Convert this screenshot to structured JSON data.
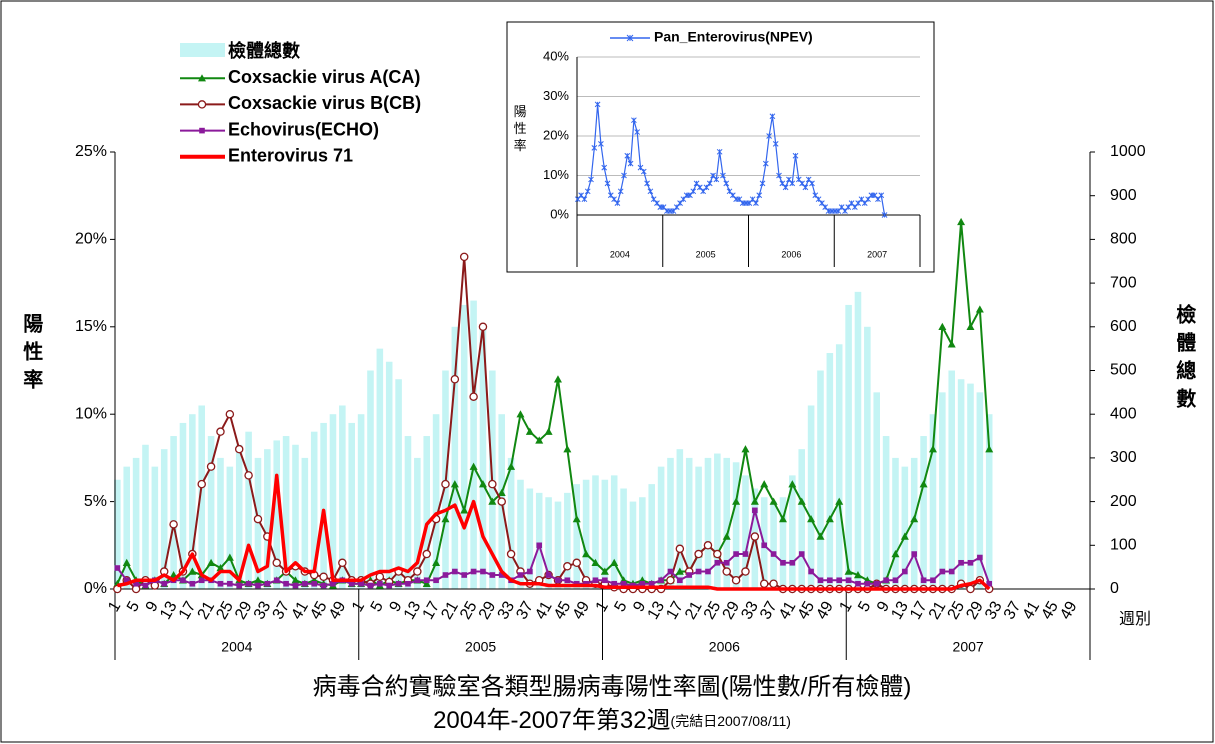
{
  "chart_data": [
    {
      "type": "line",
      "title": "病毒合約實驗室各類型腸病毒陽性率圖(陽性數/所有檢體)",
      "subtitle": "2004年-2007年第32週",
      "note": "(完結日2007/08/11)",
      "y_label": "陽性率",
      "y2_label": "檢體總數",
      "x_label": "週別",
      "years": [
        "2004",
        "2005",
        "2006",
        "2007"
      ],
      "xlim": [
        0.5,
        208.5
      ],
      "xticks": [
        1,
        5,
        9,
        13,
        17,
        21,
        25,
        29,
        33,
        37,
        41,
        45,
        49,
        {
          "value": 53,
          "label": "1"
        },
        {
          "value": 57,
          "label": "5"
        },
        {
          "value": 61,
          "label": "9"
        },
        {
          "value": 65,
          "label": "13"
        },
        {
          "value": 69,
          "label": "17"
        },
        {
          "value": 73,
          "label": "21"
        },
        {
          "value": 77,
          "label": "25"
        },
        {
          "value": 81,
          "label": "29"
        },
        {
          "value": 85,
          "label": "33"
        },
        {
          "value": 89,
          "label": "37"
        },
        {
          "value": 93,
          "label": "41"
        },
        {
          "value": 97,
          "label": "45"
        },
        {
          "value": 101,
          "label": "49"
        },
        {
          "value": 105,
          "label": "1"
        },
        {
          "value": 109,
          "label": "5"
        },
        {
          "value": 113,
          "label": "9"
        },
        {
          "value": 117,
          "label": "13"
        },
        {
          "value": 121,
          "label": "17"
        },
        {
          "value": 125,
          "label": "21"
        },
        {
          "value": 129,
          "label": "25"
        },
        {
          "value": 133,
          "label": "29"
        },
        {
          "value": 137,
          "label": "33"
        },
        {
          "value": 141,
          "label": "37"
        },
        {
          "value": 145,
          "label": "41"
        },
        {
          "value": 149,
          "label": "45"
        },
        {
          "value": 153,
          "label": "49"
        },
        {
          "value": 157,
          "label": "1"
        },
        {
          "value": 161,
          "label": "5"
        },
        {
          "value": 165,
          "label": "9"
        },
        {
          "value": 169,
          "label": "13"
        },
        {
          "value": 173,
          "label": "17"
        },
        {
          "value": 177,
          "label": "21"
        },
        {
          "value": 181,
          "label": "25"
        },
        {
          "value": 185,
          "label": "29"
        },
        {
          "value": 189,
          "label": "33"
        },
        {
          "value": 193,
          "label": "37"
        },
        {
          "value": 197,
          "label": "41"
        },
        {
          "value": 201,
          "label": "45"
        },
        {
          "value": 205,
          "label": "49"
        }
      ],
      "ylim": [
        0,
        25
      ],
      "yticks": [
        {
          "value": 0,
          "label": "0%"
        },
        {
          "value": 5,
          "label": "5%"
        },
        {
          "value": 10,
          "label": "10%"
        },
        {
          "value": 15,
          "label": "15%"
        },
        {
          "value": 20,
          "label": "20%"
        },
        {
          "value": 25,
          "label": "25%"
        }
      ],
      "y2lim": [
        0,
        1000
      ],
      "y2ticks": [
        0,
        100,
        200,
        300,
        400,
        500,
        600,
        700,
        800,
        900,
        1000
      ],
      "grid": false,
      "x": [
        1,
        3,
        5,
        7,
        9,
        11,
        13,
        15,
        17,
        19,
        21,
        23,
        25,
        27,
        29,
        31,
        33,
        35,
        37,
        39,
        41,
        43,
        45,
        47,
        49,
        51,
        53,
        55,
        57,
        59,
        61,
        63,
        65,
        67,
        69,
        71,
        73,
        75,
        77,
        79,
        81,
        83,
        85,
        87,
        89,
        91,
        93,
        95,
        97,
        99,
        101,
        103,
        105,
        107,
        109,
        111,
        113,
        115,
        117,
        119,
        121,
        123,
        125,
        127,
        129,
        131,
        133,
        135,
        137,
        139,
        141,
        143,
        145,
        147,
        149,
        151,
        153,
        155,
        157,
        159,
        161,
        163,
        165,
        167,
        169,
        171,
        173,
        175,
        177,
        179,
        181,
        183,
        185,
        187
      ],
      "series": [
        {
          "name": "檢體總數",
          "type": "bar",
          "axis": "y2",
          "color": "#c4f4f4",
          "values": [
            250,
            280,
            300,
            330,
            280,
            320,
            350,
            380,
            400,
            420,
            350,
            300,
            280,
            330,
            360,
            300,
            320,
            340,
            350,
            330,
            300,
            360,
            380,
            400,
            420,
            380,
            400,
            500,
            550,
            520,
            480,
            350,
            300,
            350,
            400,
            500,
            600,
            650,
            660,
            600,
            500,
            400,
            300,
            250,
            230,
            220,
            210,
            200,
            220,
            240,
            250,
            260,
            250,
            260,
            230,
            200,
            210,
            240,
            280,
            300,
            320,
            300,
            280,
            300,
            310,
            300,
            290,
            260,
            230,
            210,
            200,
            210,
            260,
            320,
            420,
            500,
            540,
            560,
            650,
            680,
            600,
            450,
            350,
            300,
            280,
            300,
            350,
            400,
            450,
            500,
            480,
            470,
            450,
            400
          ]
        },
        {
          "name": "Coxsackie virus A(CA)",
          "marker": "triangle",
          "color": "#118811",
          "values": [
            0.3,
            1.5,
            0.5,
            0.2,
            0.5,
            0.3,
            0.8,
            0.5,
            1,
            0.8,
            1.5,
            1.2,
            1.8,
            0.5,
            0.3,
            0.5,
            0.3,
            0.5,
            1,
            0.5,
            0.3,
            0.5,
            0.3,
            0.2,
            0.5,
            0.3,
            0.3,
            0.5,
            0.2,
            0.5,
            0.3,
            0.5,
            0.5,
            0.3,
            1.5,
            4,
            6,
            4.5,
            7,
            6,
            5,
            5.5,
            7,
            10,
            9,
            8.5,
            9,
            12,
            8,
            4,
            2,
            1.5,
            1,
            1.5,
            0.5,
            0.3,
            0.5,
            0.3,
            0.5,
            0.5,
            1,
            1,
            2,
            2.5,
            2,
            3,
            5,
            8,
            5,
            6,
            5,
            4,
            6,
            5,
            4,
            3,
            4,
            5,
            1,
            0.8,
            0.5,
            0.3,
            0.5,
            2,
            3,
            4,
            6,
            8,
            15,
            14,
            21,
            15,
            16,
            8
          ]
        },
        {
          "name": "Coxsackie virus B(CB)",
          "marker": "circle",
          "color": "#8b1a1a",
          "values": [
            0,
            0.5,
            0,
            0.5,
            0.2,
            1,
            3.7,
            1,
            2,
            6,
            7,
            9,
            10,
            8,
            6.5,
            4,
            3,
            1.5,
            1,
            1.3,
            1,
            0.8,
            0.7,
            0.5,
            1.5,
            0.5,
            0.5,
            0.3,
            0.7,
            0.4,
            1,
            0.5,
            1,
            2,
            4,
            6,
            12,
            19,
            11,
            15,
            6,
            5,
            2,
            1,
            0.3,
            0.5,
            0.8,
            0.5,
            1.3,
            1.5,
            0.5,
            0.3,
            0.3,
            0.1,
            0,
            0,
            0,
            0,
            0,
            0.5,
            2.3,
            1,
            2,
            2.5,
            2,
            1,
            0.5,
            1,
            3,
            0.3,
            0.3,
            0,
            0,
            0,
            0,
            0,
            0,
            0,
            0,
            0,
            0,
            0.3,
            0,
            0,
            0,
            0,
            0,
            0,
            0,
            0,
            0.3,
            0,
            0.5,
            0
          ]
        },
        {
          "name": "Echovirus(ECHO)",
          "marker": "square",
          "color": "#8b1a9b",
          "values": [
            1.2,
            0.5,
            0.3,
            0.2,
            0.5,
            0.3,
            0.5,
            0.5,
            0.3,
            0.5,
            0.5,
            0.3,
            0.3,
            0.2,
            0.3,
            0.2,
            0.3,
            0.5,
            0.3,
            0.2,
            0.3,
            0.3,
            0.2,
            0.3,
            0.5,
            0.3,
            0.3,
            0.2,
            0.3,
            0.2,
            0.3,
            0.3,
            0.5,
            0.5,
            0.5,
            0.8,
            1,
            0.8,
            1,
            1,
            0.8,
            0.8,
            0.5,
            0.8,
            1,
            2.5,
            0.8,
            0.5,
            0.5,
            0.3,
            0.3,
            0.5,
            0.5,
            0.3,
            0.3,
            0.2,
            0.3,
            0.3,
            0.5,
            1,
            0.5,
            0.8,
            1,
            1,
            1.5,
            1.5,
            2,
            2,
            4.5,
            2.5,
            2,
            1.5,
            1.5,
            2,
            1,
            0.5,
            0.5,
            0.5,
            0.5,
            0.3,
            0.3,
            0.3,
            0.5,
            0.5,
            1,
            2,
            0.5,
            0.5,
            1,
            1,
            1.5,
            1.5,
            1.8,
            0.3
          ]
        },
        {
          "name": "Enterovirus 71",
          "marker": "none",
          "color": "#ff0000",
          "values": [
            0.2,
            0.3,
            0.5,
            0.5,
            0.5,
            0.8,
            0.5,
            1,
            2,
            0.8,
            0.5,
            1,
            1,
            0.5,
            2.5,
            1,
            1.3,
            6.5,
            1,
            1.5,
            1,
            1,
            4.5,
            0.5,
            0.5,
            0.5,
            0.5,
            0.8,
            1,
            1,
            1.2,
            1,
            1.5,
            3.7,
            4.3,
            4.5,
            4.8,
            3.5,
            5,
            3,
            2,
            1,
            0.5,
            0.3,
            0.3,
            0.3,
            0.2,
            0.2,
            0.2,
            0.2,
            0.2,
            0.2,
            0.1,
            0.1,
            0.1,
            0.1,
            0.1,
            0.1,
            0.1,
            0.1,
            0.1,
            0.1,
            0.1,
            0.1,
            0,
            0,
            0,
            0,
            0,
            0,
            0,
            0,
            0,
            0,
            0,
            0,
            0,
            0,
            0,
            0,
            0,
            0,
            0,
            0,
            0,
            0,
            0,
            0,
            0,
            0,
            0.2,
            0.3,
            0.5,
            0
          ]
        }
      ]
    },
    {
      "type": "line",
      "y_label": "陽性率",
      "years": [
        "2004",
        "2005",
        "2006",
        "2007"
      ],
      "xlim": [
        0.5,
        208.5
      ],
      "ylim": [
        0,
        40
      ],
      "yticks": [
        {
          "value": 0,
          "label": "0%"
        },
        {
          "value": 10,
          "label": "10%"
        },
        {
          "value": 20,
          "label": "20%"
        },
        {
          "value": 30,
          "label": "30%"
        },
        {
          "value": 40,
          "label": "40%"
        }
      ],
      "grid": true,
      "x": [
        1,
        3,
        5,
        7,
        9,
        11,
        13,
        15,
        17,
        19,
        21,
        23,
        25,
        27,
        29,
        31,
        33,
        35,
        37,
        39,
        41,
        43,
        45,
        47,
        49,
        51,
        53,
        55,
        57,
        59,
        61,
        63,
        65,
        67,
        69,
        71,
        73,
        75,
        77,
        79,
        81,
        83,
        85,
        87,
        89,
        91,
        93,
        95,
        97,
        99,
        101,
        103,
        105,
        107,
        109,
        111,
        113,
        115,
        117,
        119,
        121,
        123,
        125,
        127,
        129,
        131,
        133,
        135,
        137,
        139,
        141,
        143,
        145,
        147,
        149,
        151,
        153,
        155,
        157,
        159,
        161,
        163,
        165,
        167,
        169,
        171,
        173,
        175,
        177,
        179,
        181,
        183,
        185,
        187
      ],
      "series": [
        {
          "name": "Pan_Enterovirus(NPEV)",
          "marker": "asterisk",
          "color": "#3366ee",
          "values": [
            4,
            5,
            4,
            6,
            9,
            17,
            28,
            18,
            12,
            8,
            5,
            4,
            3,
            6,
            10,
            15,
            13,
            24,
            21,
            12,
            11,
            8,
            6,
            4,
            3,
            2,
            2,
            1,
            1,
            1,
            2,
            3,
            4,
            5,
            5,
            6,
            8,
            7,
            6,
            7,
            8,
            10,
            9,
            16,
            10,
            8,
            6,
            5,
            4,
            4,
            3,
            3,
            3,
            4,
            3,
            5,
            8,
            13,
            20,
            25,
            18,
            10,
            8,
            7,
            9,
            8,
            15,
            9,
            8,
            7,
            9,
            8,
            5,
            4,
            3,
            2,
            1,
            1,
            1,
            1,
            2,
            1,
            2,
            3,
            2,
            3,
            4,
            3,
            4,
            5,
            5,
            4,
            5,
            0
          ]
        }
      ]
    }
  ]
}
